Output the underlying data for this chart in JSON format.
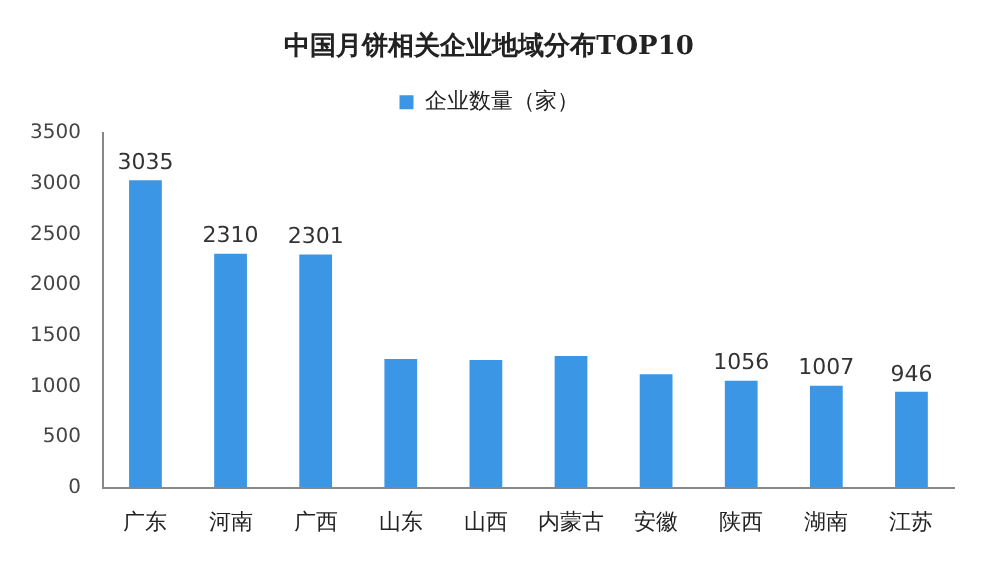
{
  "chart_data": {
    "type": "bar",
    "title": "中国月饼相关企业地域分布TOP10",
    "categories": [
      "广东",
      "河南",
      "广西",
      "山东",
      "山西",
      "内蒙古",
      "安徽",
      "陕西",
      "湖南",
      "江苏"
    ],
    "series": [
      {
        "name": "企业数量（家）",
        "color": "#3c96e6",
        "values": [
          3035,
          2310,
          2301,
          1270,
          1260,
          1300,
          1120,
          1056,
          1007,
          946
        ],
        "value_labels": [
          "3035",
          "2310",
          "2301",
          null,
          null,
          null,
          null,
          "1056",
          "1007",
          "946"
        ]
      }
    ],
    "ylim": [
      0,
      3500
    ],
    "yticks": [
      0,
      500,
      1000,
      1500,
      2000,
      2500,
      3000,
      3500
    ],
    "grid": false,
    "legend": "top"
  }
}
